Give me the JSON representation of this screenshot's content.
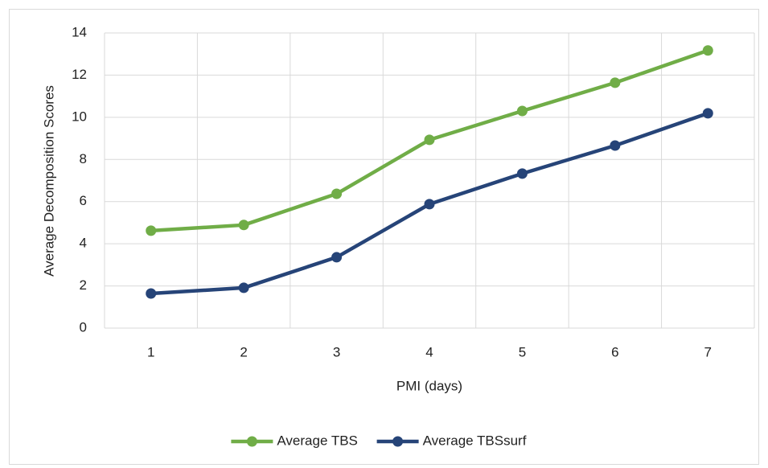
{
  "chart_data": {
    "type": "line",
    "xlabel": "PMI (days)",
    "ylabel": "Average Decomposition Scores",
    "categories": [
      "1",
      "2",
      "3",
      "4",
      "5",
      "6",
      "7"
    ],
    "series": [
      {
        "name": "Average TBS",
        "color": "#70ad47",
        "values": [
          4.62,
          4.89,
          6.37,
          8.93,
          10.3,
          11.64,
          13.17
        ]
      },
      {
        "name": "Average TBSsurf",
        "color": "#264478",
        "values": [
          1.64,
          1.91,
          3.36,
          5.88,
          7.33,
          8.66,
          10.19
        ]
      }
    ],
    "ylim": [
      0,
      14
    ],
    "yticks": [
      0,
      2,
      4,
      6,
      8,
      10,
      12,
      14
    ],
    "grid": true,
    "legend": "bottom"
  }
}
